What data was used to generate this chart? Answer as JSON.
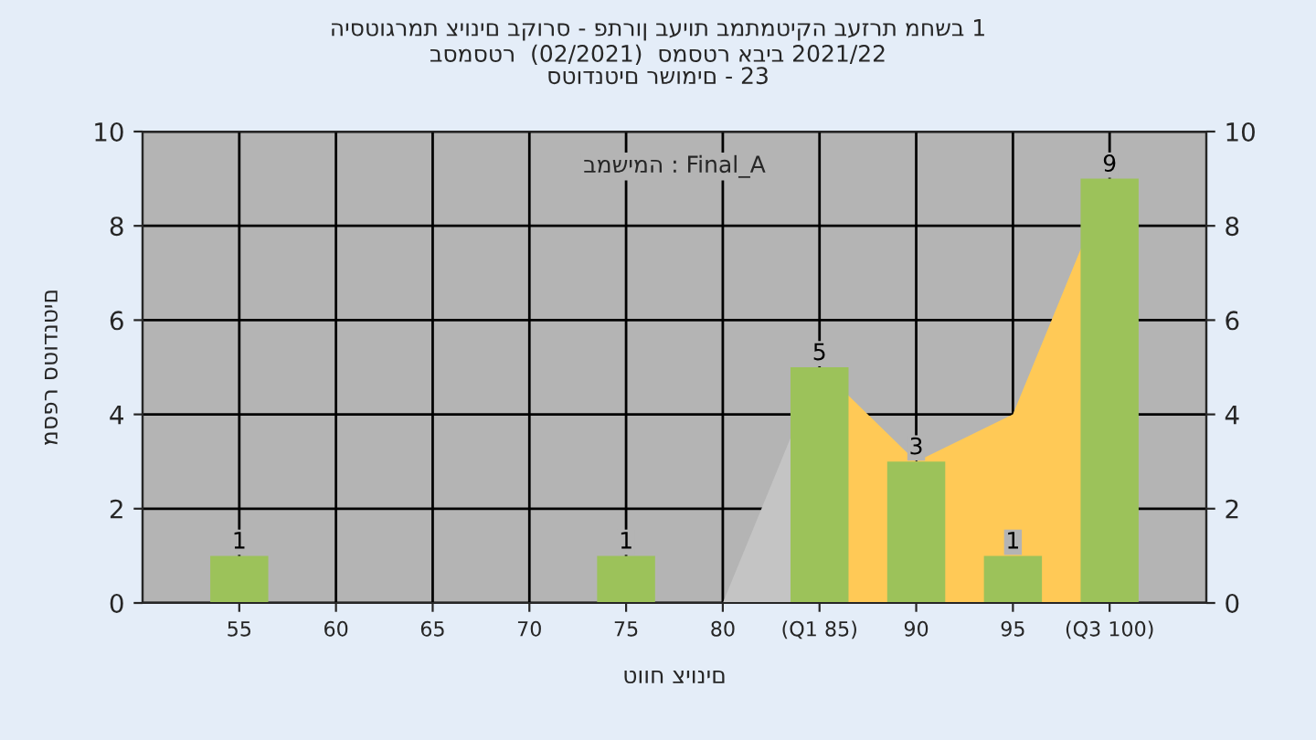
{
  "chart_data": {
    "type": "bar",
    "title": "היסטוגרמת ציונים בקורס - פתרון בעיות במתמטיקה בעזרת מחשב 1",
    "subtitle": "בסמסטר  (02/2021)  סמסטר אביב 2021/22\nסטודנטים רשומים - 23",
    "xlabel": "טווח ציונים",
    "ylabel": "מספר סטודנטים",
    "annotations": [
      "במשימה : Final_A"
    ],
    "series": [
      {
        "type": "area",
        "color": "#c4c4c4",
        "x": [
          80,
          85
        ],
        "values": [
          0,
          5
        ]
      },
      {
        "type": "area",
        "color": "#ffc956",
        "x": [
          85,
          90,
          95,
          100
        ],
        "values": [
          5,
          3,
          4,
          9
        ]
      },
      {
        "color": "#9cc25a",
        "x": [
          55,
          60,
          65,
          70,
          75,
          80,
          85,
          90,
          95,
          100
        ],
        "values": [
          1,
          0,
          0,
          0,
          1,
          0,
          5,
          3,
          1,
          9
        ],
        "value_labels": [
          "1",
          null,
          null,
          null,
          "1",
          null,
          "5",
          "3",
          "1",
          "9"
        ]
      }
    ],
    "xlim": [
      50,
      105
    ],
    "xticks": [
      55,
      60,
      65,
      70,
      75,
      80,
      {
        "value": 85,
        "label": "(Q1 85)"
      },
      90,
      95,
      {
        "value": 100,
        "label": "(Q3 100)"
      }
    ],
    "ylim": [
      0,
      10
    ],
    "yticks": [
      0,
      2,
      4,
      6,
      8,
      10
    ],
    "y2lim": [
      0,
      10
    ],
    "y2ticks": [
      0,
      2,
      4,
      6,
      8,
      10
    ],
    "grid": true
  }
}
